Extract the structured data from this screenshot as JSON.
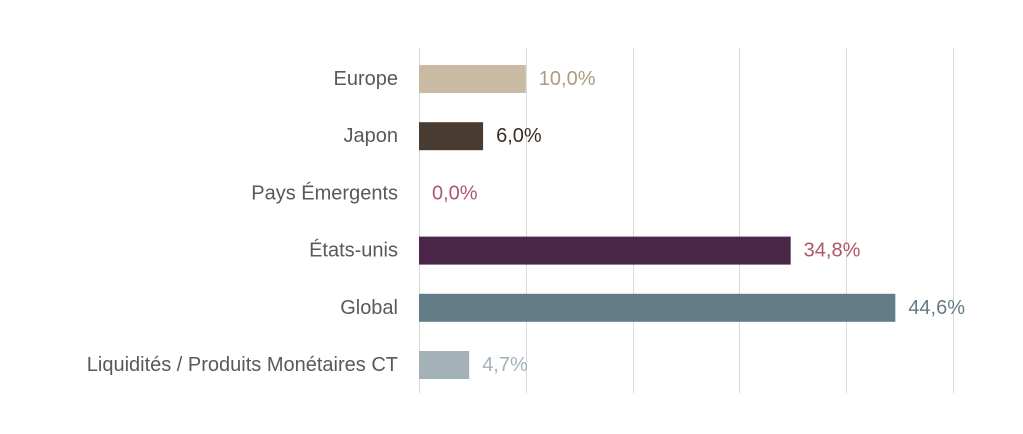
{
  "chart_data": {
    "type": "bar",
    "orientation": "horizontal",
    "categories": [
      "Europe",
      "Japon",
      "Pays Émergents",
      "États-unis",
      "Global",
      "Liquidités / Produits Monétaires CT"
    ],
    "values": [
      10.0,
      6.0,
      0.0,
      34.8,
      44.6,
      4.7
    ],
    "value_labels": [
      "10,0%",
      "6,0%",
      "0,0%",
      "34,8%",
      "44,6%",
      "4,7%"
    ],
    "bar_colors": [
      "#c8baa3",
      "#4a3b30",
      "#b0566a",
      "#4a2748",
      "#647c87",
      "#a4b2b8"
    ],
    "label_colors": [
      "#ad9b7e",
      "#3a2e26",
      "#b0566a",
      "#b0566a",
      "#647c87",
      "#a4b2b8"
    ],
    "xlim": [
      0,
      50
    ],
    "grid_step": 10,
    "grid": true,
    "legend": "none",
    "title": "",
    "xlabel": "",
    "ylabel": ""
  }
}
